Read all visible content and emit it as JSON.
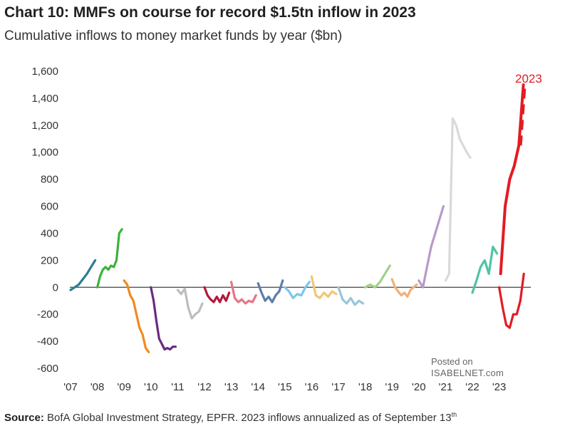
{
  "header": {
    "title": "Chart 10: MMFs on course for record $1.5tn inflow in 2023",
    "subtitle": "Cumulative inflows to money market funds by year ($bn)"
  },
  "footer": {
    "source_label": "Source:",
    "source_text": "BofA Global Investment Strategy, EPFR. 2023  inflows annualized as of September 13",
    "source_sup": "th"
  },
  "watermark": {
    "line1": "Posted on",
    "line2": "ISABELNET.com"
  },
  "colors": {
    "2007": "#2a7f8f",
    "2008": "#3cb23a",
    "2009": "#ef8a21",
    "2010": "#6a2b7e",
    "2011": "#bdbdbd",
    "2012": "#b3193b",
    "2013": "#e8748a",
    "2014": "#5d7da8",
    "2015": "#7cc6ea",
    "2016": "#f0c676",
    "2017": "#9ac6d6",
    "2018": "#a3cf8a",
    "2019": "#f2b07a",
    "2020": "#b79ac8",
    "2021": "#d9d9d9",
    "2022": "#4fc3a6",
    "2023": "#e31b23",
    "zero_line": "#555555"
  },
  "chart_data": {
    "type": "line",
    "title": "Chart 10: MMFs on course for record $1.5tn inflow in 2023",
    "subtitle": "Cumulative inflows to money market funds by year ($bn)",
    "xlabel": "",
    "ylabel": "",
    "ylim": [
      -600,
      1600
    ],
    "y_ticks": [
      1600,
      1400,
      1200,
      1000,
      800,
      600,
      400,
      200,
      0,
      -200,
      -400,
      -600
    ],
    "y_tick_labels": [
      "1,600",
      "1,400",
      "1,200",
      "1,000",
      "800",
      "600",
      "400",
      "200",
      "0",
      "-200",
      "-400",
      "-600"
    ],
    "x_tick_labels": [
      "'07",
      "'08",
      "'09",
      "'10",
      "'11",
      "'12",
      "'13",
      "'14",
      "'15",
      "'16",
      "'17",
      "'18",
      "'19",
      "'20",
      "'21",
      "'22",
      "'23"
    ],
    "grid": false,
    "annotation": "2023",
    "series": [
      {
        "year": "2007",
        "values": [
          -20,
          0,
          20,
          60,
          100,
          150,
          200
        ]
      },
      {
        "year": "2008",
        "values": [
          0,
          80,
          130,
          150,
          130,
          160,
          150,
          200,
          400,
          430
        ]
      },
      {
        "year": "2009",
        "values": [
          50,
          20,
          -60,
          -100,
          -200,
          -300,
          -350,
          -450,
          -480
        ]
      },
      {
        "year": "2010",
        "values": [
          0,
          -100,
          -250,
          -380,
          -420,
          -460,
          -450,
          -460,
          -440,
          -440
        ]
      },
      {
        "year": "2011",
        "values": [
          -20,
          -50,
          -10,
          -150,
          -230,
          -200,
          -180,
          -120
        ]
      },
      {
        "year": "2012",
        "values": [
          0,
          -60,
          -90,
          -110,
          -70,
          -110,
          -60,
          -100,
          -40
        ]
      },
      {
        "year": "2013",
        "values": [
          40,
          -80,
          -110,
          -90,
          -120,
          -100,
          -110,
          -60
        ]
      },
      {
        "year": "2014",
        "values": [
          30,
          -40,
          -100,
          -70,
          -110,
          -60,
          -30,
          50
        ]
      },
      {
        "year": "2015",
        "values": [
          0,
          -30,
          -80,
          -50,
          -60,
          0,
          40
        ]
      },
      {
        "year": "2016",
        "values": [
          80,
          -60,
          -80,
          -40,
          -70,
          -30,
          -50
        ]
      },
      {
        "year": "2017",
        "values": [
          0,
          -90,
          -120,
          -80,
          -130,
          -100,
          -120
        ]
      },
      {
        "year": "2018",
        "values": [
          0,
          20,
          0,
          40,
          100,
          160
        ]
      },
      {
        "year": "2019",
        "values": [
          60,
          0,
          -30,
          -60,
          -40,
          -70,
          -20,
          0,
          20
        ]
      },
      {
        "year": "2020",
        "values": [
          50,
          0,
          150,
          300,
          400,
          500,
          600
        ]
      },
      {
        "year": "2021",
        "values": [
          50,
          100,
          1250,
          1200,
          1100,
          1050,
          1000,
          960
        ]
      },
      {
        "year": "2022",
        "values": [
          -40,
          50,
          150,
          200,
          100,
          300,
          250
        ]
      },
      {
        "year": "2023",
        "values": [
          0,
          -150,
          -280,
          -300,
          -200,
          -200,
          -100,
          100
        ]
      },
      {
        "year": "2023-annualized",
        "values": [
          100,
          600,
          800,
          900,
          1050,
          1500
        ]
      }
    ]
  }
}
